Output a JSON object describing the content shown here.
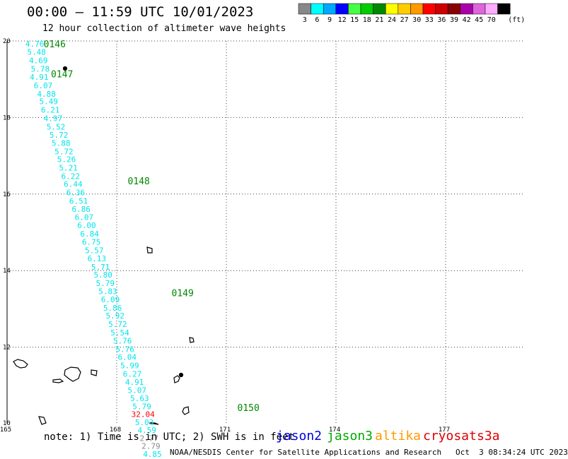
{
  "header": {
    "title": "00:00 – 11:59 UTC 10/01/2023",
    "subtitle": "12 hour collection of altimeter wave heights"
  },
  "legend": {
    "units": "(ft)",
    "bins": [
      {
        "color": "#888888",
        "label": "3"
      },
      {
        "color": "#00ffff",
        "label": "6"
      },
      {
        "color": "#00a8ff",
        "label": "9"
      },
      {
        "color": "#0000ff",
        "label": "12"
      },
      {
        "color": "#44ff44",
        "label": "15"
      },
      {
        "color": "#00cc00",
        "label": "18"
      },
      {
        "color": "#008800",
        "label": "21"
      },
      {
        "color": "#ffff00",
        "label": "24"
      },
      {
        "color": "#ffcc00",
        "label": "27"
      },
      {
        "color": "#ff9900",
        "label": "30"
      },
      {
        "color": "#ff0000",
        "label": "33"
      },
      {
        "color": "#cc0000",
        "label": "36"
      },
      {
        "color": "#880000",
        "label": "39"
      },
      {
        "color": "#aa00aa",
        "label": "42"
      },
      {
        "color": "#dd66dd",
        "label": "45"
      },
      {
        "color": "#ffaaff",
        "label": "70"
      },
      {
        "color": "#000000",
        "label": ""
      }
    ]
  },
  "map": {
    "lon_range": [
      165,
      180
    ],
    "lat_range": [
      10,
      20
    ],
    "lon_ticks": [
      "165",
      "168",
      "171",
      "174",
      "177"
    ],
    "lat_ticks": [
      "20",
      "18",
      "16",
      "14",
      "12",
      "10"
    ],
    "track_color": "#00e5ee",
    "time_labels": [
      {
        "text": "0146",
        "lon": 166.0,
        "lat": 19.93
      },
      {
        "text": "0147",
        "lon": 166.2,
        "lat": 19.14
      },
      {
        "text": "0148",
        "lon": 168.3,
        "lat": 16.35
      },
      {
        "text": "0149",
        "lon": 169.5,
        "lat": 13.42
      },
      {
        "text": "0150",
        "lon": 171.3,
        "lat": 10.42
      }
    ],
    "track": [
      {
        "label": "4.76",
        "lon": 165.5,
        "lat": 19.93,
        "color": "#00e5ee"
      },
      {
        "label": "5.48",
        "lon": 165.55,
        "lat": 19.71,
        "color": "#00e5ee"
      },
      {
        "label": "4.69",
        "lon": 165.6,
        "lat": 19.49,
        "color": "#00e5ee"
      },
      {
        "label": "5.78",
        "lon": 165.65,
        "lat": 19.27,
        "color": "#00e5ee"
      },
      {
        "label": "4.91",
        "lon": 165.62,
        "lat": 19.06,
        "color": "#00e5ee"
      },
      {
        "label": "6.07",
        "lon": 165.73,
        "lat": 18.84,
        "color": "#00e5ee"
      },
      {
        "label": "4.88",
        "lon": 165.82,
        "lat": 18.62,
        "color": "#00e5ee"
      },
      {
        "label": "5.49",
        "lon": 165.88,
        "lat": 18.42,
        "color": "#00e5ee"
      },
      {
        "label": "6.21",
        "lon": 165.93,
        "lat": 18.2,
        "color": "#00e5ee"
      },
      {
        "label": "4.97",
        "lon": 166.0,
        "lat": 17.98,
        "color": "#00e5ee"
      },
      {
        "label": "5.52",
        "lon": 166.08,
        "lat": 17.76,
        "color": "#00e5ee"
      },
      {
        "label": "5.72",
        "lon": 166.16,
        "lat": 17.55,
        "color": "#00e5ee"
      },
      {
        "label": "5.88",
        "lon": 166.22,
        "lat": 17.33,
        "color": "#00e5ee"
      },
      {
        "label": "5.72",
        "lon": 166.3,
        "lat": 17.11,
        "color": "#00e5ee"
      },
      {
        "label": "5.26",
        "lon": 166.37,
        "lat": 16.91,
        "color": "#00e5ee"
      },
      {
        "label": "5.21",
        "lon": 166.42,
        "lat": 16.69,
        "color": "#00e5ee"
      },
      {
        "label": "6.22",
        "lon": 166.48,
        "lat": 16.47,
        "color": "#00e5ee"
      },
      {
        "label": "6.44",
        "lon": 166.55,
        "lat": 16.26,
        "color": "#00e5ee"
      },
      {
        "label": "6.36",
        "lon": 166.62,
        "lat": 16.04,
        "color": "#00e5ee"
      },
      {
        "label": "6.51",
        "lon": 166.7,
        "lat": 15.82,
        "color": "#00e5ee"
      },
      {
        "label": "6.86",
        "lon": 166.77,
        "lat": 15.61,
        "color": "#00e5ee"
      },
      {
        "label": "6.07",
        "lon": 166.85,
        "lat": 15.4,
        "color": "#00e5ee"
      },
      {
        "label": "6.00",
        "lon": 166.92,
        "lat": 15.18,
        "color": "#00e5ee"
      },
      {
        "label": "6.84",
        "lon": 167.0,
        "lat": 14.96,
        "color": "#00e5ee"
      },
      {
        "label": "6.75",
        "lon": 167.05,
        "lat": 14.75,
        "color": "#00e5ee"
      },
      {
        "label": "5.57",
        "lon": 167.13,
        "lat": 14.53,
        "color": "#00e5ee"
      },
      {
        "label": "6.13",
        "lon": 167.2,
        "lat": 14.32,
        "color": "#00e5ee"
      },
      {
        "label": "5.71",
        "lon": 167.3,
        "lat": 14.1,
        "color": "#00e5ee"
      },
      {
        "label": "5.80",
        "lon": 167.37,
        "lat": 13.89,
        "color": "#00e5ee"
      },
      {
        "label": "5.79",
        "lon": 167.43,
        "lat": 13.67,
        "color": "#00e5ee"
      },
      {
        "label": "5.83",
        "lon": 167.5,
        "lat": 13.46,
        "color": "#00e5ee"
      },
      {
        "label": "6.09",
        "lon": 167.57,
        "lat": 13.25,
        "color": "#00e5ee"
      },
      {
        "label": "5.86",
        "lon": 167.63,
        "lat": 13.03,
        "color": "#00e5ee"
      },
      {
        "label": "5.92",
        "lon": 167.7,
        "lat": 12.82,
        "color": "#00e5ee"
      },
      {
        "label": "5.72",
        "lon": 167.77,
        "lat": 12.6,
        "color": "#00e5ee"
      },
      {
        "label": "5.54",
        "lon": 167.83,
        "lat": 12.38,
        "color": "#00e5ee"
      },
      {
        "label": "5.76",
        "lon": 167.9,
        "lat": 12.17,
        "color": "#00e5ee"
      },
      {
        "label": "5.76",
        "lon": 167.97,
        "lat": 11.95,
        "color": "#00e5ee"
      },
      {
        "label": "6.04",
        "lon": 168.03,
        "lat": 11.74,
        "color": "#00e5ee"
      },
      {
        "label": "5.99",
        "lon": 168.1,
        "lat": 11.52,
        "color": "#00e5ee"
      },
      {
        "label": "6.27",
        "lon": 168.17,
        "lat": 11.3,
        "color": "#00e5ee"
      },
      {
        "label": "4.91",
        "lon": 168.23,
        "lat": 11.09,
        "color": "#00e5ee"
      },
      {
        "label": "5.07",
        "lon": 168.3,
        "lat": 10.88,
        "color": "#00e5ee"
      },
      {
        "label": "5.63",
        "lon": 168.37,
        "lat": 10.66,
        "color": "#00e5ee"
      },
      {
        "label": "5.79",
        "lon": 168.43,
        "lat": 10.45,
        "color": "#00e5ee"
      },
      {
        "label": "32.04",
        "lon": 168.4,
        "lat": 10.25,
        "color": "#ff0000"
      },
      {
        "label": "5.03",
        "lon": 168.5,
        "lat": 10.04,
        "color": "#00e5ee"
      },
      {
        "label": "4.59",
        "lon": 168.57,
        "lat": 9.83,
        "color": "#00e5ee"
      },
      {
        "label": "2.77",
        "lon": 168.63,
        "lat": 9.62,
        "color": "#888888"
      },
      {
        "label": "2.79",
        "lon": 168.68,
        "lat": 9.42,
        "color": "#888888"
      },
      {
        "label": "4.85",
        "lon": 168.72,
        "lat": 9.21,
        "color": "#00e5ee"
      }
    ]
  },
  "footer": {
    "note": "note: 1) Time is in UTC; 2) SWH is in feet",
    "credit": "NOAA/NESDIS Center for Satellite Applications and Research   Oct  3 08:34:24 UTC 2023",
    "satellites": [
      {
        "name": "jason2",
        "color": "#0000dd"
      },
      {
        "name": "jason3",
        "color": "#00aa00"
      },
      {
        "name": "altika",
        "color": "#ff9900"
      },
      {
        "name": "cryosat",
        "color": "#dd0000"
      },
      {
        "name": "s3a",
        "color": "#dd0000"
      }
    ]
  }
}
